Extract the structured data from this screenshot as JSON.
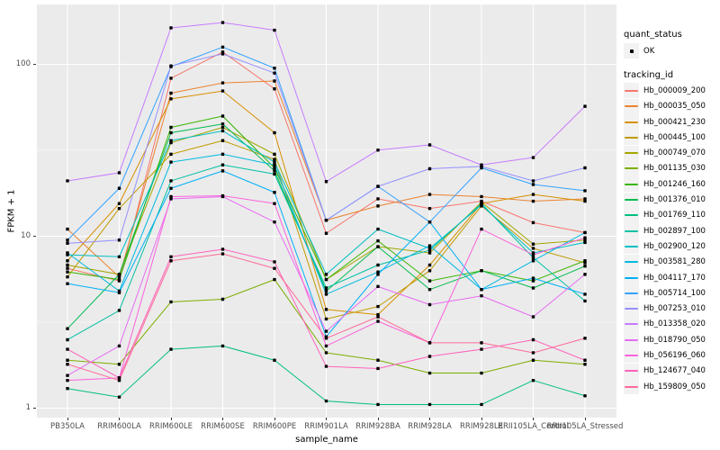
{
  "chart": {
    "y_axis_title": "FPKM + 1",
    "x_axis_title": "sample_name"
  },
  "legend": {
    "quant_status": {
      "title": "quant_status",
      "items": [
        {
          "label": "OK",
          "marker": "black-point-icon"
        }
      ]
    },
    "tracking": {
      "title": "tracking_id"
    }
  },
  "colors": {
    "panel_bg": "#EBEBEB",
    "grid": "#FFFFFF",
    "tick_label": "#4D4D4D",
    "legend_key_bg": "#F2F2F2",
    "point": "#000000"
  },
  "chart_data": {
    "type": "line",
    "title": "",
    "xlabel": "sample_name",
    "ylabel": "FPKM + 1",
    "y_scale": "log10",
    "ylim": [
      0.9,
      225
    ],
    "y_tick_values": [
      1,
      10,
      100
    ],
    "grid": true,
    "legend_position": "right",
    "marker": {
      "shape": "square",
      "color": "#000000",
      "meaning": "quant_status OK"
    },
    "categories": [
      "PB350LA",
      "RRIM600LA",
      "RRIM600LE",
      "RRIM600SE",
      "RRIM600PE",
      "RRIM901LA",
      "RRIM928BA",
      "RRIM928LA",
      "RRIM928LE",
      "RRII105LA_Control",
      "RRII105LA_Stressed"
    ],
    "series": [
      {
        "name": "Hb_000009_200",
        "color": "#F8766D",
        "values": [
          6.5,
          5.5,
          83,
          118,
          72,
          10.4,
          16.5,
          14.5,
          16,
          12,
          10.5
        ]
      },
      {
        "name": "Hb_000035_050",
        "color": "#EA8331",
        "values": [
          11,
          5.8,
          68,
          78,
          80,
          12.4,
          15,
          17.5,
          17,
          16,
          16.5
        ]
      },
      {
        "name": "Hb_000421_230",
        "color": "#D89000",
        "values": [
          7.2,
          15.5,
          63,
          70,
          40,
          3.75,
          3.5,
          6.8,
          15.5,
          17.5,
          16
        ]
      },
      {
        "name": "Hb_000445_100",
        "color": "#C09B00",
        "values": [
          5.8,
          14.5,
          30,
          36,
          28,
          3.3,
          3.9,
          6.3,
          15,
          8.5,
          7
        ]
      },
      {
        "name": "Hb_000749_070",
        "color": "#A3A500",
        "values": [
          6.8,
          6.0,
          35,
          43,
          30,
          5.6,
          8.7,
          8.0,
          15.8,
          9.0,
          9.5
        ]
      },
      {
        "name": "Hb_001135_030",
        "color": "#7CAE00",
        "values": [
          1.9,
          1.8,
          4.15,
          4.3,
          5.6,
          2.1,
          1.9,
          1.6,
          1.6,
          1.9,
          1.8
        ]
      },
      {
        "name": "Hb_001246_160",
        "color": "#39B600",
        "values": [
          6.2,
          5.6,
          43,
          50,
          25,
          5.6,
          9.4,
          5.5,
          6.3,
          5.5,
          7.2
        ]
      },
      {
        "name": "Hb_001376_010",
        "color": "#00BB4E",
        "values": [
          2.9,
          6.0,
          40,
          45,
          24,
          4.8,
          8.7,
          4.9,
          6.3,
          5.0,
          6.7
        ]
      },
      {
        "name": "Hb_001769_110",
        "color": "#00BF7D",
        "values": [
          1.3,
          1.16,
          2.2,
          2.3,
          1.9,
          1.1,
          1.05,
          1.05,
          1.05,
          1.45,
          1.18
        ]
      },
      {
        "name": "Hb_002897_100",
        "color": "#00C1A3",
        "values": [
          2.5,
          3.7,
          21,
          26,
          23,
          5.0,
          6.8,
          8.3,
          15.5,
          7.5,
          4.2
        ]
      },
      {
        "name": "Hb_002900_120",
        "color": "#00BFC4",
        "values": [
          7.8,
          7.6,
          36,
          41,
          27,
          6.0,
          11,
          8.5,
          15.2,
          8.0,
          9.2
        ]
      },
      {
        "name": "Hb_003581_280",
        "color": "#00BAE0",
        "values": [
          8.0,
          4.8,
          27,
          30,
          26,
          4.6,
          6.2,
          8.8,
          4.9,
          7.2,
          10.5
        ]
      },
      {
        "name": "Hb_004117_170",
        "color": "#00B0F6",
        "values": [
          5.3,
          4.7,
          19,
          24,
          18,
          2.6,
          6.0,
          12.1,
          4.9,
          5.7,
          4.6
        ]
      },
      {
        "name": "Hb_005714_100",
        "color": "#35A2FF",
        "values": [
          9.5,
          19,
          97,
          126,
          95,
          12.4,
          19.5,
          12.1,
          25,
          20,
          18.4
        ]
      },
      {
        "name": "Hb_007253_010",
        "color": "#9590FF",
        "values": [
          9.1,
          9.5,
          98,
          115,
          89,
          12.4,
          19.5,
          24.7,
          25.5,
          21,
          25
        ]
      },
      {
        "name": "Hb_013358_020",
        "color": "#C77CFF",
        "values": [
          21,
          23.4,
          163,
          175,
          158,
          20.8,
          31.7,
          34,
          26,
          28.7,
          57
        ]
      },
      {
        "name": "Hb_018790_050",
        "color": "#E76BF3",
        "values": [
          1.55,
          2.3,
          16.5,
          17,
          12.1,
          2.8,
          5.1,
          4.0,
          4.5,
          3.4,
          6.0
        ]
      },
      {
        "name": "Hb_056196_060",
        "color": "#FA62DB",
        "values": [
          1.45,
          1.5,
          17,
          17.2,
          15.5,
          2.3,
          3.2,
          2.4,
          11,
          7.8,
          9.8
        ]
      },
      {
        "name": "Hb_124677_040",
        "color": "#FF62BC",
        "values": [
          2.2,
          1.5,
          7.6,
          8.4,
          7.1,
          1.75,
          1.7,
          2.0,
          2.2,
          2.5,
          1.9
        ]
      },
      {
        "name": "Hb_159809_050",
        "color": "#FF6A98",
        "values": [
          1.8,
          1.45,
          7.2,
          7.9,
          6.5,
          2.55,
          3.4,
          2.4,
          2.4,
          2.1,
          2.55
        ]
      }
    ]
  }
}
